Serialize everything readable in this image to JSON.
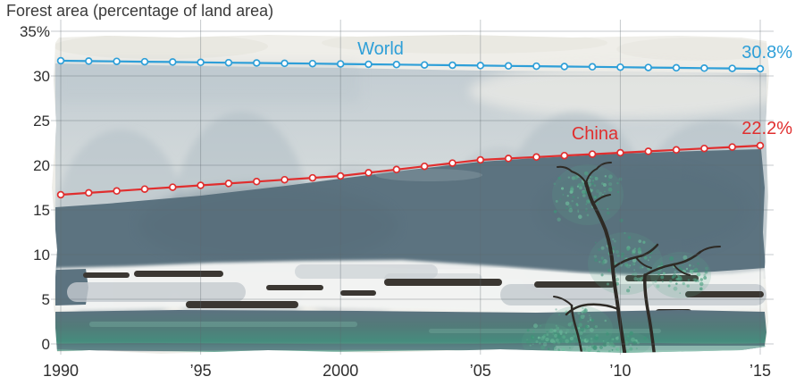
{
  "chart_data": {
    "type": "line",
    "title": "Forest area (percentage of land area)",
    "x_label": "",
    "y_label": "",
    "x": [
      1990,
      1991,
      1992,
      1993,
      1994,
      1995,
      1996,
      1997,
      1998,
      1999,
      2000,
      2001,
      2002,
      2003,
      2004,
      2005,
      2006,
      2007,
      2008,
      2009,
      2010,
      2011,
      2012,
      2013,
      2014,
      2015
    ],
    "series": [
      {
        "name": "World",
        "color": "#2E9FD8",
        "end_label": "30.8%",
        "values": [
          31.7,
          31.66,
          31.63,
          31.59,
          31.56,
          31.52,
          31.48,
          31.45,
          31.41,
          31.38,
          31.34,
          31.3,
          31.27,
          31.23,
          31.2,
          31.16,
          31.12,
          31.09,
          31.05,
          31.02,
          30.98,
          30.94,
          30.91,
          30.87,
          30.84,
          30.8
        ]
      },
      {
        "name": "China",
        "color": "#E02E2E",
        "end_label": "22.2%",
        "values": [
          16.7,
          16.91,
          17.12,
          17.33,
          17.54,
          17.75,
          17.96,
          18.17,
          18.38,
          18.59,
          18.8,
          19.16,
          19.52,
          19.88,
          20.24,
          20.6,
          20.76,
          20.92,
          21.08,
          21.24,
          21.4,
          21.56,
          21.72,
          21.88,
          22.04,
          22.2
        ]
      }
    ],
    "ylim": [
      0,
      35
    ],
    "yticks": [
      {
        "value": 35,
        "label": "35%"
      },
      {
        "value": 30,
        "label": "30"
      },
      {
        "value": 25,
        "label": "25"
      },
      {
        "value": 20,
        "label": "20"
      },
      {
        "value": 15,
        "label": "15"
      },
      {
        "value": 10,
        "label": "10"
      },
      {
        "value": 5,
        "label": "5"
      },
      {
        "value": 0,
        "label": "0"
      }
    ],
    "xticks": [
      {
        "year": 1990,
        "label": "1990"
      },
      {
        "year": 1995,
        "label": "’95"
      },
      {
        "year": 2000,
        "label": "2000"
      },
      {
        "year": 2005,
        "label": "’05"
      },
      {
        "year": 2010,
        "label": "’10"
      },
      {
        "year": 2015,
        "label": "’15"
      }
    ],
    "grid": true,
    "legend": "inline-labels",
    "marker": "open-circle"
  }
}
